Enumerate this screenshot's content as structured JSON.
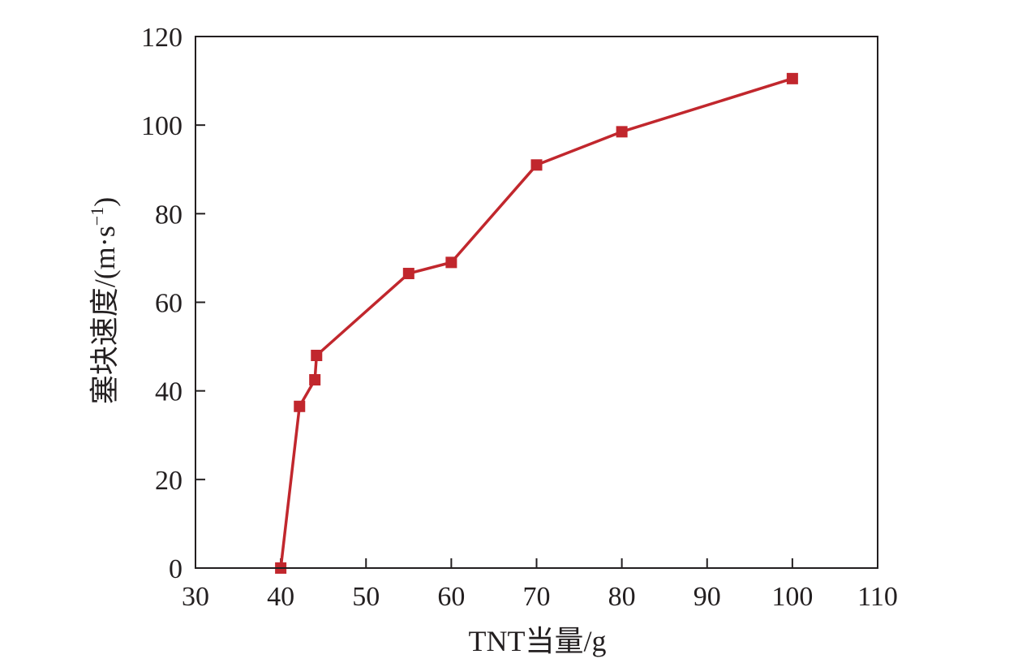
{
  "chart_data": {
    "type": "line",
    "title": "",
    "xlabel": "TNT当量/g",
    "ylabel_main": "塞块速度/(m·s",
    "ylabel_sup": "−1",
    "ylabel_close": ")",
    "xlim": [
      30,
      110
    ],
    "ylim": [
      0,
      120
    ],
    "xticks": [
      30,
      40,
      50,
      60,
      70,
      80,
      90,
      100,
      110
    ],
    "yticks": [
      0,
      20,
      40,
      60,
      80,
      100,
      120
    ],
    "grid": false,
    "legend": "none",
    "series": [
      {
        "marker": "square",
        "color": "#c1272d",
        "points": [
          {
            "x": 40,
            "y": 0
          },
          {
            "x": 42.2,
            "y": 36.5
          },
          {
            "x": 44,
            "y": 42.5
          },
          {
            "x": 44.2,
            "y": 48
          },
          {
            "x": 55,
            "y": 66.5
          },
          {
            "x": 60,
            "y": 69
          },
          {
            "x": 70,
            "y": 91
          },
          {
            "x": 80,
            "y": 98.5
          },
          {
            "x": 100,
            "y": 110.5
          }
        ]
      }
    ]
  }
}
